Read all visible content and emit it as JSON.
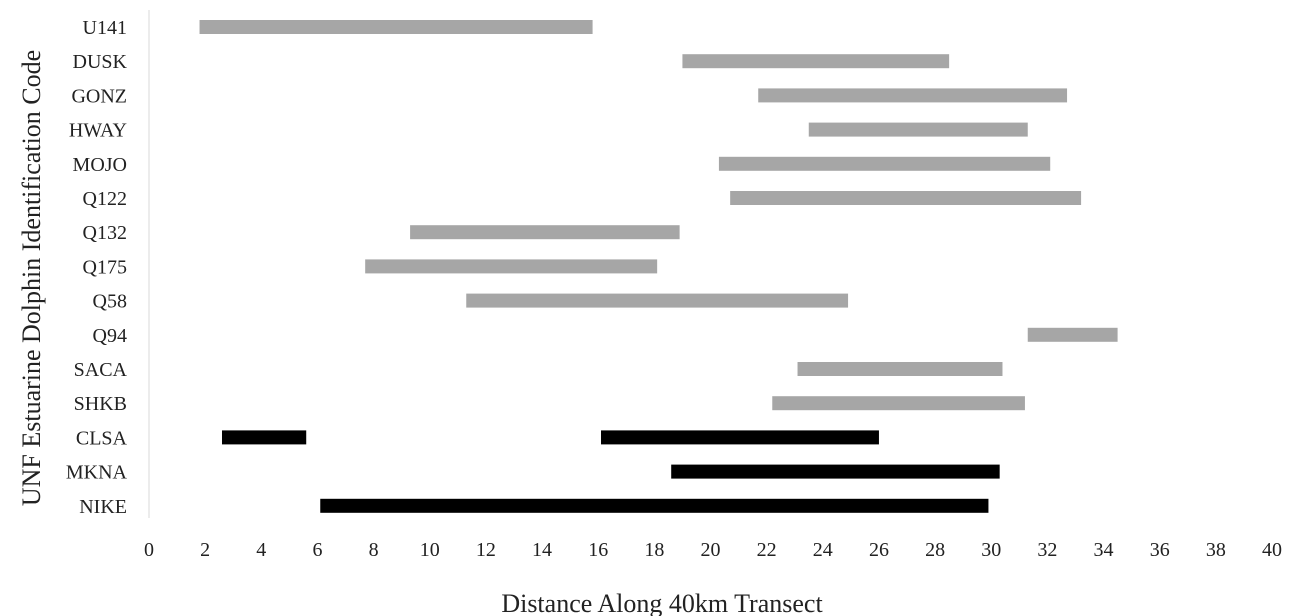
{
  "chart_data": {
    "type": "bar",
    "orientation": "horizontal-range",
    "title": "",
    "xlabel": "Distance Along 40km Transect",
    "ylabel": "UNF Estuarine Dolphin Identification Code",
    "xlim": [
      0,
      40
    ],
    "x_ticks": [
      0,
      2,
      4,
      6,
      8,
      10,
      12,
      14,
      16,
      18,
      20,
      22,
      24,
      26,
      28,
      30,
      32,
      34,
      36,
      38,
      40
    ],
    "grid": false,
    "legend": "none",
    "colors": {
      "grey": "#a6a6a6",
      "black": "#000000",
      "axis": "#d9d9d9",
      "text": "#222222"
    },
    "categories": [
      "U141",
      "DUSK",
      "GONZ",
      "HWAY",
      "MOJO",
      "Q122",
      "Q132",
      "Q175",
      "Q58",
      "Q94",
      "SACA",
      "SHKB",
      "CLSA",
      "MKNA",
      "NIKE"
    ],
    "ranges": [
      {
        "category": "U141",
        "color": "grey",
        "segments": [
          [
            1.8,
            15.8
          ]
        ]
      },
      {
        "category": "DUSK",
        "color": "grey",
        "segments": [
          [
            19.0,
            28.5
          ]
        ]
      },
      {
        "category": "GONZ",
        "color": "grey",
        "segments": [
          [
            21.7,
            32.7
          ]
        ]
      },
      {
        "category": "HWAY",
        "color": "grey",
        "segments": [
          [
            23.5,
            31.3
          ]
        ]
      },
      {
        "category": "MOJO",
        "color": "grey",
        "segments": [
          [
            20.3,
            32.1
          ]
        ]
      },
      {
        "category": "Q122",
        "color": "grey",
        "segments": [
          [
            20.7,
            33.2
          ]
        ]
      },
      {
        "category": "Q132",
        "color": "grey",
        "segments": [
          [
            9.3,
            18.9
          ]
        ]
      },
      {
        "category": "Q175",
        "color": "grey",
        "segments": [
          [
            7.7,
            18.1
          ]
        ]
      },
      {
        "category": "Q58",
        "color": "grey",
        "segments": [
          [
            11.3,
            24.9
          ]
        ]
      },
      {
        "category": "Q94",
        "color": "grey",
        "segments": [
          [
            31.3,
            34.5
          ]
        ]
      },
      {
        "category": "SACA",
        "color": "grey",
        "segments": [
          [
            23.1,
            30.4
          ]
        ]
      },
      {
        "category": "SHKB",
        "color": "grey",
        "segments": [
          [
            22.2,
            31.2
          ]
        ]
      },
      {
        "category": "CLSA",
        "color": "black",
        "segments": [
          [
            2.6,
            5.6
          ],
          [
            16.1,
            26.0
          ]
        ]
      },
      {
        "category": "MKNA",
        "color": "black",
        "segments": [
          [
            18.6,
            30.3
          ]
        ]
      },
      {
        "category": "NIKE",
        "color": "black",
        "segments": [
          [
            6.1,
            29.9
          ]
        ]
      }
    ]
  }
}
